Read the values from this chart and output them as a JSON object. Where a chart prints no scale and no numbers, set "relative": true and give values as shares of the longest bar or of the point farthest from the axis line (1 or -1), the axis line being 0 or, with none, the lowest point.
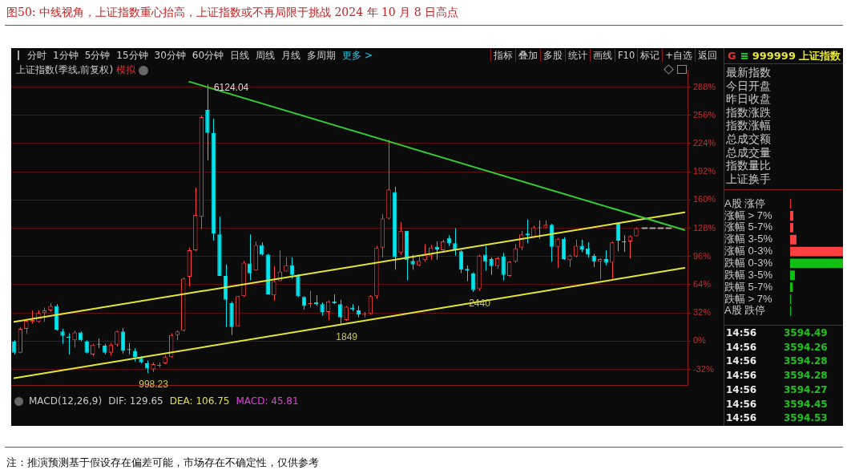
{
  "chart_data": [
    {
      "type": "candlestick",
      "title": "图50:  中线视角，上证指数重心抬高，上证指数或不再局限于挑战 2024 年 10 月 8 日高点",
      "subtitle": "上证指数(季线,前复权)",
      "categories": [
        null,
        null,
        null,
        null,
        null,
        null,
        null,
        null,
        null,
        null,
        null,
        null,
        null,
        null,
        null,
        null,
        null,
        null,
        null,
        null,
        null,
        null,
        null,
        null,
        null,
        null,
        null,
        null,
        null,
        null,
        null,
        null,
        null,
        null,
        null,
        null,
        null,
        null,
        null,
        null,
        null,
        null,
        null,
        null,
        null,
        null,
        null,
        null,
        null,
        null,
        null,
        null,
        null,
        null,
        null,
        null,
        null,
        null,
        null,
        null,
        null,
        null,
        null,
        null,
        null,
        null,
        null,
        null,
        null,
        null,
        null,
        null,
        null,
        null,
        null,
        null,
        null,
        null,
        null,
        null,
        null,
        null,
        null,
        null,
        null,
        null,
        null,
        null,
        null,
        null,
        null,
        null,
        null,
        null,
        null,
        null,
        null,
        null,
        null,
        null,
        null,
        null,
        null,
        null,
        null,
        null,
        null,
        null,
        null,
        null,
        null,
        null
      ],
      "ohlc": [
        [
          0,
          1,
          -15,
          -13
        ],
        [
          -13,
          16,
          -14,
          14
        ],
        [
          14,
          24,
          8,
          23
        ],
        [
          22,
          35,
          20,
          24
        ],
        [
          22,
          35,
          21,
          32
        ],
        [
          32,
          38,
          22,
          35
        ],
        [
          35,
          43,
          33,
          40
        ],
        [
          40,
          42,
          12,
          13
        ],
        [
          11,
          14,
          -3,
          6
        ],
        [
          5,
          9,
          -15,
          4
        ],
        [
          1,
          12,
          -7,
          10
        ],
        [
          10,
          11,
          0,
          1
        ],
        [
          0,
          1,
          -14,
          -13
        ],
        [
          -15,
          -3,
          -17,
          -4
        ],
        [
          -3,
          3,
          -8,
          -4
        ],
        [
          -5,
          -3,
          -15,
          -13
        ],
        [
          -13,
          -2,
          -16,
          -4
        ],
        [
          -4,
          12,
          -6,
          11
        ],
        [
          11,
          15,
          -14,
          -11
        ],
        [
          -9,
          -2,
          -15,
          -10
        ],
        [
          -11,
          -8,
          -23,
          -18
        ],
        [
          -19,
          -17,
          -25,
          -24
        ],
        [
          -25,
          -22,
          -36,
          -31
        ],
        [
          -32,
          -24,
          -35,
          -26
        ],
        [
          -28,
          -24,
          -30,
          -27
        ],
        [
          -25,
          -16,
          -26,
          -18
        ],
        [
          -18,
          9,
          -19,
          7
        ],
        [
          7,
          12,
          1,
          11
        ],
        [
          12,
          72,
          11,
          71
        ],
        [
          73,
          106,
          62,
          103
        ],
        [
          103,
          174,
          102,
          143
        ],
        [
          141,
          256,
          127,
          254
        ],
        [
          262,
          291,
          205,
          236
        ],
        [
          236,
          252,
          114,
          122
        ],
        [
          121,
          141,
          74,
          74
        ],
        [
          74,
          87,
          16,
          47
        ],
        [
          43,
          45,
          7,
          16
        ],
        [
          17,
          51,
          17,
          51
        ],
        [
          51,
          91,
          50,
          89
        ],
        [
          88,
          121,
          69,
          77
        ],
        [
          80,
          113,
          80,
          109
        ],
        [
          109,
          112,
          97,
          98
        ],
        [
          98,
          99,
          53,
          53
        ],
        [
          52,
          85,
          46,
          68
        ],
        [
          68,
          103,
          68,
          79
        ],
        [
          79,
          95,
          79,
          86
        ],
        [
          86,
          95,
          71,
          75
        ],
        [
          75,
          76,
          50,
          51
        ],
        [
          50,
          51,
          36,
          40
        ],
        [
          42,
          57,
          38,
          43
        ],
        [
          44,
          52,
          40,
          42
        ],
        [
          42,
          44,
          29,
          33
        ],
        [
          33,
          46,
          24,
          45
        ],
        [
          45,
          53,
          42,
          43
        ],
        [
          42,
          47,
          18,
          27
        ],
        [
          24,
          40,
          23,
          39
        ],
        [
          38,
          42,
          34,
          36
        ],
        [
          35,
          40,
          27,
          30
        ],
        [
          30,
          33,
          27,
          31
        ],
        [
          31,
          52,
          30,
          51
        ],
        [
          51,
          108,
          48,
          106
        ],
        [
          106,
          144,
          95,
          139
        ],
        [
          139,
          228,
          138,
          172
        ],
        [
          169,
          175,
          81,
          95
        ],
        [
          100,
          135,
          98,
          125
        ],
        [
          125,
          125,
          69,
          92
        ],
        [
          91,
          98,
          81,
          87
        ],
        [
          86,
          97,
          85,
          91
        ],
        [
          92,
          110,
          90,
          98
        ],
        [
          97,
          109,
          92,
          106
        ],
        [
          107,
          113,
          92,
          104
        ],
        [
          103,
          115,
          101,
          113
        ],
        [
          117,
          120,
          108,
          111
        ],
        [
          111,
          128,
          97,
          103
        ],
        [
          102,
          103,
          77,
          81
        ],
        [
          82,
          86,
          68,
          80
        ],
        [
          77,
          78,
          56,
          58
        ],
        [
          59,
          98,
          57,
          97
        ],
        [
          98,
          108,
          80,
          90
        ],
        [
          93,
          95,
          75,
          85
        ],
        [
          85,
          96,
          82,
          94
        ],
        [
          96,
          100,
          69,
          75
        ],
        [
          74,
          91,
          73,
          90
        ],
        [
          90,
          110,
          89,
          105
        ],
        [
          106,
          125,
          103,
          121
        ],
        [
          122,
          138,
          111,
          120
        ],
        [
          118,
          131,
          117,
          129
        ],
        [
          129,
          137,
          116,
          128
        ],
        [
          129,
          137,
          128,
          132
        ],
        [
          132,
          133,
          90,
          107
        ],
        [
          107,
          117,
          83,
          116
        ],
        [
          116,
          118,
          92,
          93
        ],
        [
          92,
          98,
          84,
          97
        ],
        [
          96,
          115,
          95,
          108
        ],
        [
          108,
          115,
          101,
          104
        ],
        [
          105,
          112,
          95,
          98
        ],
        [
          97,
          99,
          84,
          90
        ],
        [
          90,
          94,
          70,
          93
        ],
        [
          93,
          103,
          86,
          89
        ],
        [
          89,
          113,
          71,
          112
        ],
        [
          133,
          134,
          102,
          114
        ],
        [
          113,
          120,
          101,
          112
        ],
        [
          113,
          120,
          94,
          119
        ],
        [
          119,
          129,
          119,
          128
        ],
        null,
        null,
        null,
        null,
        null,
        null,
        null,
        null
      ],
      "series": [
        {
          "type": "line",
          "color": "#33cc33",
          "values": [
            null,
            null,
            null,
            null,
            null,
            null,
            null,
            null,
            null,
            null,
            null,
            null,
            null,
            null,
            null,
            null,
            null,
            null,
            null,
            null,
            null,
            null,
            null,
            null,
            null,
            null,
            null,
            null,
            null,
            294,
            null,
            null,
            null,
            null,
            null,
            null,
            null,
            null,
            null,
            null,
            null,
            null,
            null,
            null,
            null,
            null,
            null,
            null,
            null,
            null,
            null,
            null,
            null,
            null,
            null,
            null,
            null,
            null,
            null,
            null,
            null,
            null,
            null,
            null,
            null,
            null,
            null,
            null,
            null,
            null,
            null,
            null,
            null,
            null,
            null,
            null,
            null,
            null,
            null,
            null,
            null,
            null,
            null,
            null,
            null,
            null,
            null,
            null,
            null,
            null,
            null,
            null,
            null,
            null,
            null,
            null,
            null,
            null,
            null,
            null,
            null,
            null,
            null,
            null,
            null,
            null,
            null,
            null,
            null,
            null,
            null,
            126
          ]
        },
        {
          "type": "line",
          "color": "#e6e62e",
          "values": [
            22,
            null,
            null,
            null,
            null,
            null,
            null,
            null,
            null,
            null,
            null,
            null,
            null,
            null,
            null,
            null,
            null,
            null,
            null,
            null,
            null,
            null,
            null,
            null,
            null,
            null,
            null,
            null,
            null,
            null,
            null,
            null,
            null,
            null,
            null,
            null,
            null,
            null,
            null,
            null,
            null,
            null,
            null,
            null,
            null,
            null,
            null,
            null,
            null,
            null,
            null,
            null,
            null,
            null,
            null,
            null,
            null,
            null,
            null,
            null,
            null,
            null,
            null,
            null,
            null,
            null,
            null,
            null,
            null,
            null,
            null,
            null,
            null,
            null,
            null,
            null,
            null,
            null,
            null,
            null,
            null,
            null,
            null,
            null,
            null,
            null,
            null,
            null,
            null,
            null,
            null,
            null,
            null,
            null,
            null,
            null,
            null,
            null,
            null,
            null,
            null,
            null,
            null,
            null,
            null,
            null,
            null,
            null,
            null,
            null,
            null,
            146
          ]
        },
        {
          "type": "line",
          "color": "#e6e62e",
          "values": [
            -42,
            null,
            null,
            null,
            null,
            null,
            null,
            null,
            null,
            null,
            null,
            null,
            null,
            null,
            null,
            null,
            null,
            null,
            null,
            null,
            null,
            null,
            null,
            null,
            null,
            null,
            null,
            null,
            null,
            null,
            null,
            null,
            null,
            null,
            null,
            null,
            null,
            null,
            null,
            null,
            null,
            null,
            null,
            null,
            null,
            null,
            null,
            null,
            null,
            null,
            null,
            null,
            null,
            null,
            null,
            null,
            null,
            null,
            null,
            null,
            null,
            null,
            null,
            null,
            null,
            null,
            null,
            null,
            null,
            null,
            null,
            null,
            null,
            null,
            null,
            null,
            null,
            null,
            null,
            null,
            null,
            null,
            null,
            null,
            null,
            null,
            null,
            null,
            null,
            null,
            null,
            null,
            null,
            null,
            null,
            null,
            null,
            null,
            null,
            null,
            null,
            null,
            null,
            null,
            null,
            null,
            null,
            null,
            null,
            null,
            null,
            83
          ]
        },
        {
          "type": "line",
          "color": "#aaaaaa",
          "line_style": "dashed",
          "values": [
            null,
            null,
            null,
            null,
            null,
            null,
            null,
            null,
            null,
            null,
            null,
            null,
            null,
            null,
            null,
            null,
            null,
            null,
            null,
            null,
            null,
            null,
            null,
            null,
            null,
            null,
            null,
            null,
            null,
            null,
            null,
            null,
            null,
            null,
            null,
            null,
            null,
            null,
            null,
            null,
            null,
            null,
            null,
            null,
            null,
            null,
            null,
            null,
            null,
            null,
            null,
            null,
            null,
            null,
            null,
            null,
            null,
            null,
            null,
            null,
            null,
            null,
            null,
            null,
            null,
            null,
            null,
            null,
            null,
            null,
            null,
            null,
            null,
            null,
            null,
            null,
            null,
            null,
            null,
            null,
            null,
            null,
            null,
            null,
            null,
            null,
            null,
            null,
            null,
            null,
            null,
            null,
            null,
            null,
            null,
            null,
            null,
            null,
            null,
            null,
            null,
            null,
            null,
            null,
            128,
            null,
            null,
            null,
            null,
            128,
            null,
            null
          ]
        }
      ],
      "ylim": [
        -50,
        307
      ],
      "yticks": [
        {
          "value": -32,
          "label": "-32%"
        },
        {
          "value": 0,
          "label": "0%"
        },
        {
          "value": 32,
          "label": "32%"
        },
        {
          "value": 64,
          "label": "64%"
        },
        {
          "value": 96,
          "label": "96%"
        },
        {
          "value": 128,
          "label": "128%"
        },
        {
          "value": 160,
          "label": "160%"
        },
        {
          "value": 192,
          "label": "192%"
        },
        {
          "value": 224,
          "label": "224%"
        },
        {
          "value": 256,
          "label": "256%"
        },
        {
          "value": 288,
          "label": "288%"
        }
      ],
      "grid": "y",
      "tick_labels": "y",
      "marker": "none",
      "annotations": [
        "模拟",
        "6124.04",
        {
          "text": "998.23",
          "y": -36
        },
        {
          "text": "1849",
          "y": 18
        },
        {
          "text": "2440",
          "y": 56
        },
        "注：推演预测基于假设存在偏差可能，市场存在不确定性，仅供参考"
      ]
    },
    {
      "type": "other",
      "annotations": [
        "分时",
        "1分钟",
        "5分钟",
        "15分钟",
        "30分钟",
        "60分钟",
        "日线",
        "周线",
        "月线",
        "多周期",
        "更多 >"
      ],
      "colors": [
        "#d0d0d0",
        "#d0d0d0",
        "#d0d0d0",
        "#d0d0d0",
        "#d0d0d0",
        "#d0d0d0",
        "#d0d0d0",
        "#d0d0d0",
        "#d0d0d0",
        "#d0d0d0",
        "#22c8e8"
      ]
    },
    {
      "type": "other",
      "annotations": [
        "指标",
        "叠加",
        "多股",
        "统计",
        "画线",
        "F10",
        "标记",
        "+自选",
        "返回"
      ],
      "colors": [
        "#d0d0d0",
        "#d0d0d0",
        "#d0d0d0",
        "#d0d0d0",
        "#d0d0d0",
        "#d0d0d0",
        "#d0d0d0",
        "#d0d0d0",
        "#d0d0d0"
      ]
    },
    {
      "type": "other",
      "annotations": [
        "MACD(12,26,9)",
        "DIF: 129.65",
        "DEA: 106.75",
        "MACD: 45.81"
      ],
      "colors": [
        "#c8c8c8",
        "#c8c8c8",
        "#e0e040",
        "#e040e0"
      ]
    },
    {
      "type": "other",
      "annotations": [
        "G",
        "999999 上证指数"
      ],
      "colors": [
        "#e03030",
        "#e6e62e"
      ]
    },
    {
      "type": "other",
      "annotations": [
        "最新指数",
        "今日开盘",
        "昨日收盘",
        "指数涨跌",
        "指数涨幅",
        "总成交额",
        "总成交量",
        "指数量比",
        "上证换手"
      ],
      "colors": [
        "#c8c8c8"
      ]
    },
    {
      "type": "bar",
      "orientation": "horizontal",
      "relative": true,
      "categories": [
        "A股 涨停",
        "涨幅 > 7%",
        "涨幅 5-7%",
        "涨幅 3-5%",
        "涨幅 0-3%",
        "跌幅 0-3%",
        "跌幅 3-5%",
        "跌幅 5-7%",
        "跌幅 > 7%",
        "A股 跌停"
      ],
      "values": [
        0.02,
        0.06,
        0.06,
        0.12,
        1,
        1,
        0.09,
        0.05,
        0.02,
        0.02
      ],
      "colors": [
        "#e03030",
        "#ff4040",
        "#ff4040",
        "#ff4040",
        "#ff4040",
        "#10c010",
        "#10c010",
        "#10c010",
        "#10c010",
        "#10c010"
      ]
    },
    {
      "type": "other",
      "annotations": [
        "14:56",
        "3594.49",
        "14:56",
        "3594.26",
        "14:56",
        "3594.28",
        "14:56",
        "3594.28",
        "14:56",
        "3594.27",
        "14:56",
        "3594.45",
        "14:56",
        "3594.53"
      ],
      "colors": [
        "#e8e8e8",
        "#20c020"
      ]
    }
  ]
}
